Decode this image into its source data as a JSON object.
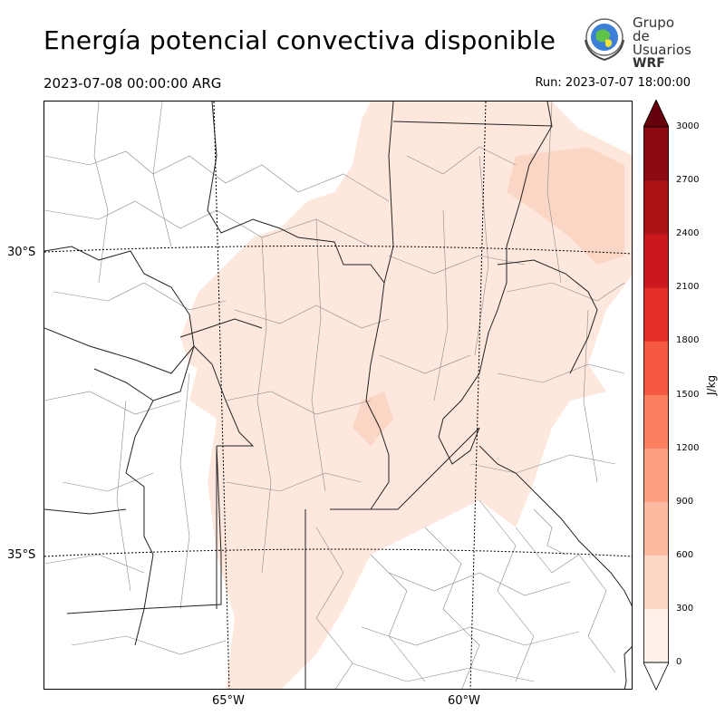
{
  "header": {
    "title": "Energía potencial convectiva disponible",
    "valid_time": "2023-07-08 00:00:00 ARG",
    "run_time": "Run: 2023-07-07 18:00:00"
  },
  "logo": {
    "line1": "Grupo de",
    "line2": "Usuarios",
    "line3": "WRF"
  },
  "map": {
    "field": "CAPE",
    "lat_labels": [
      "30°S",
      "35°S"
    ],
    "lon_labels": [
      "65°W",
      "60°W"
    ],
    "fill_color_low": "#fee8de",
    "fill_color_mid": "#fcd6c4"
  },
  "colorbar": {
    "unit": "J/kg",
    "ticks": [
      "0",
      "300",
      "600",
      "900",
      "1200",
      "1500",
      "1800",
      "2100",
      "2400",
      "2700",
      "3000"
    ],
    "colors": [
      "#fff0e9",
      "#fdd7c6",
      "#fcbba1",
      "#fc9e80",
      "#fb7f5f",
      "#f6573f",
      "#e32f27",
      "#cb181d",
      "#ad1217",
      "#8d0a12",
      "#67000d"
    ],
    "extend": "both"
  }
}
